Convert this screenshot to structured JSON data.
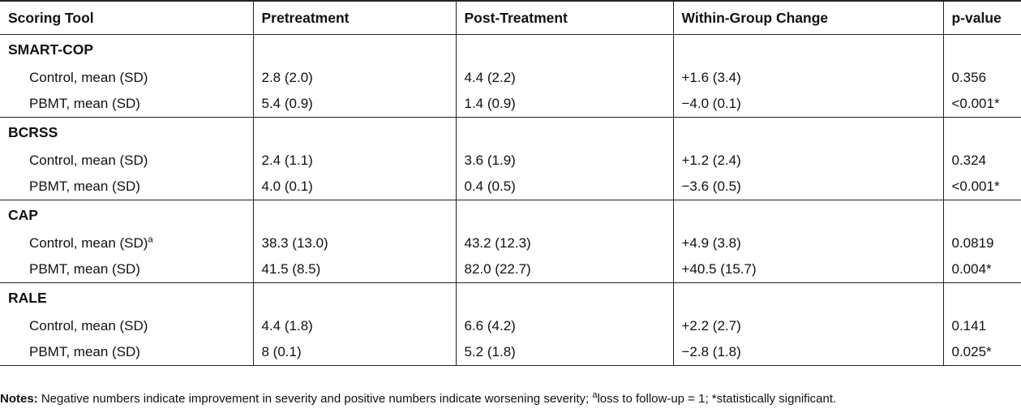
{
  "header": {
    "col1": "Scoring Tool",
    "col2": "Pretreatment",
    "col3": "Post-Treatment",
    "col4": "Within-Group Change",
    "col5": "p-value"
  },
  "groups": [
    {
      "name": "SMART-COP",
      "rows": [
        {
          "label": "Control, mean (SD)",
          "sup": "",
          "pre": "2.8 (2.0)",
          "post": "4.4 (2.2)",
          "change": "+1.6 (3.4)",
          "p": "0.356"
        },
        {
          "label": "PBMT, mean (SD)",
          "sup": "",
          "pre": "5.4 (0.9)",
          "post": "1.4 (0.9)",
          "change": "−4.0 (0.1)",
          "p": "<0.001*"
        }
      ]
    },
    {
      "name": "BCRSS",
      "rows": [
        {
          "label": "Control, mean (SD)",
          "sup": "",
          "pre": "2.4 (1.1)",
          "post": "3.6 (1.9)",
          "change": "+1.2 (2.4)",
          "p": "0.324"
        },
        {
          "label": "PBMT, mean (SD)",
          "sup": "",
          "pre": "4.0 (0.1)",
          "post": "0.4 (0.5)",
          "change": "−3.6 (0.5)",
          "p": "<0.001*"
        }
      ]
    },
    {
      "name": "CAP",
      "rows": [
        {
          "label": "Control, mean (SD)",
          "sup": "a",
          "pre": "38.3 (13.0)",
          "post": "43.2 (12.3)",
          "change": "+4.9 (3.8)",
          "p": "0.0819"
        },
        {
          "label": "PBMT, mean (SD)",
          "sup": "",
          "pre": "41.5 (8.5)",
          "post": "82.0 (22.7)",
          "change": "+40.5 (15.7)",
          "p": "0.004*"
        }
      ]
    },
    {
      "name": "RALE",
      "rows": [
        {
          "label": "Control, mean (SD)",
          "sup": "",
          "pre": "4.4 (1.8)",
          "post": "6.6 (4.2)",
          "change": "+2.2 (2.7)",
          "p": "0.141"
        },
        {
          "label": "PBMT, mean (SD)",
          "sup": "",
          "pre": "8 (0.1)",
          "post": "5.2 (1.8)",
          "change": "−2.8 (1.8)",
          "p": "0.025*"
        }
      ]
    }
  ],
  "notes": {
    "label": "Notes:",
    "text1": " Negative numbers indicate improvement in severity and positive numbers indicate worsening severity; ",
    "sup": "a",
    "text2": "loss to follow-up = 1; *statistically significant."
  }
}
